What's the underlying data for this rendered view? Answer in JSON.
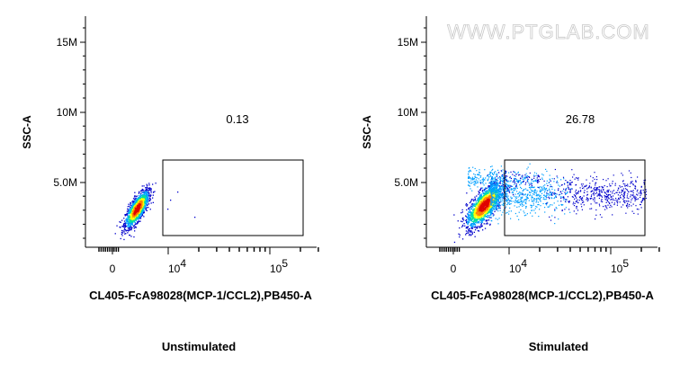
{
  "chart_data": [
    {
      "type": "scatter",
      "subtype": "flow-cytometry-density-dot-plot",
      "condition_label": "Unstimulated",
      "xlabel": "CL405-FcA98028(MCP-1/CCL2),PB450-A",
      "ylabel": "SSC-A",
      "x_scale": "biexponential",
      "x_ticks": [
        "0",
        "10^4",
        "10^5"
      ],
      "y_ticks": [
        "5.0M",
        "10M",
        "15M"
      ],
      "ylim": [
        0,
        17000000
      ],
      "gate": {
        "shape": "rectangle",
        "x_range": [
          8000,
          300000
        ],
        "y_range": [
          1000000,
          6600000
        ],
        "percent_label": "0.13"
      },
      "density_colormap": [
        "#0000cc",
        "#00a0ff",
        "#00e0a0",
        "#ffff00",
        "#ff8000",
        "#e00000"
      ],
      "population": {
        "center_x": 1000,
        "center_y": 2700000,
        "approx_events": "main population below gate threshold"
      }
    },
    {
      "type": "scatter",
      "subtype": "flow-cytometry-density-dot-plot",
      "condition_label": "Stimulated",
      "xlabel": "CL405-FcA98028(MCP-1/CCL2),PB450-A",
      "ylabel": "SSC-A",
      "x_scale": "biexponential",
      "x_ticks": [
        "0",
        "10^4",
        "10^5"
      ],
      "y_ticks": [
        "5.0M",
        "10M",
        "15M"
      ],
      "ylim": [
        0,
        17000000
      ],
      "gate": {
        "shape": "rectangle",
        "x_range": [
          8000,
          300000
        ],
        "y_range": [
          1000000,
          6600000
        ],
        "percent_label": "26.78"
      },
      "density_colormap": [
        "#0000cc",
        "#00a0ff",
        "#00e0a0",
        "#ffff00",
        "#ff8000",
        "#e00000"
      ],
      "population": {
        "center_x": 1500,
        "center_y": 3200000,
        "approx_events": "main population with tail extending into gate"
      }
    }
  ],
  "watermark": "WWW.PTGLAB.COM"
}
